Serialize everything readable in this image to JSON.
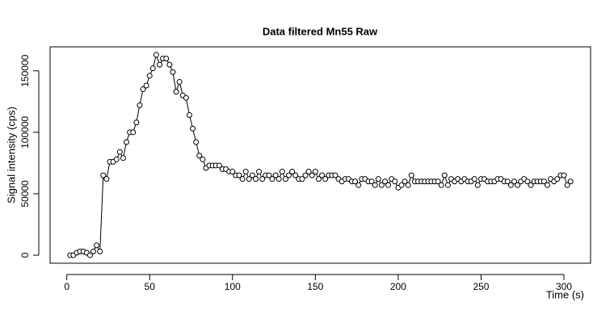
{
  "chart_data": {
    "type": "line",
    "title": "Data filtered Mn55 Raw",
    "x_label": "Time (s)",
    "y_label": "Signal intensity (cps)",
    "x": [
      2,
      4,
      6,
      8,
      10,
      12,
      14,
      16,
      18,
      20,
      22,
      24,
      26,
      28,
      30,
      32,
      34,
      36,
      38,
      40,
      42,
      44,
      46,
      48,
      50,
      52,
      54,
      56,
      58,
      60,
      62,
      64,
      66,
      68,
      70,
      72,
      74,
      76,
      78,
      80,
      82,
      84,
      86,
      88,
      90,
      92,
      94,
      96,
      98,
      100,
      102,
      104,
      106,
      108,
      110,
      112,
      114,
      116,
      118,
      120,
      122,
      124,
      126,
      128,
      130,
      132,
      134,
      136,
      138,
      140,
      142,
      144,
      146,
      148,
      150,
      152,
      154,
      156,
      158,
      160,
      162,
      164,
      166,
      168,
      170,
      172,
      174,
      176,
      178,
      180,
      182,
      184,
      186,
      188,
      190,
      192,
      194,
      196,
      198,
      200,
      202,
      204,
      206,
      208,
      210,
      212,
      214,
      216,
      218,
      220,
      222,
      224,
      226,
      228,
      230,
      232,
      234,
      236,
      238,
      240,
      242,
      244,
      246,
      248,
      250,
      252,
      254,
      256,
      258,
      260,
      262,
      264,
      266,
      268,
      270,
      272,
      274,
      276,
      278,
      280,
      282,
      284,
      286,
      288,
      290,
      292,
      294,
      296,
      298,
      300,
      302,
      304
    ],
    "series": [
      {
        "color": "#000000",
        "values": [
          0,
          0,
          2000,
          3000,
          3000,
          2000,
          0,
          3000,
          8000,
          3000,
          65000,
          62000,
          76000,
          76000,
          78000,
          84000,
          79000,
          92000,
          100000,
          100000,
          108000,
          122000,
          135000,
          138000,
          146000,
          152000,
          163000,
          155000,
          160000,
          160000,
          155000,
          149000,
          133000,
          141000,
          130000,
          128000,
          114000,
          103000,
          92000,
          81000,
          78000,
          71000,
          73000,
          73000,
          73000,
          73000,
          70000,
          70000,
          68000,
          68000,
          65000,
          65000,
          62000,
          68000,
          62000,
          65000,
          62000,
          68000,
          62000,
          65000,
          65000,
          62000,
          65000,
          62000,
          68000,
          62000,
          65000,
          68000,
          65000,
          62000,
          62000,
          65000,
          68000,
          65000,
          68000,
          62000,
          65000,
          62000,
          65000,
          65000,
          65000,
          62000,
          60000,
          62000,
          62000,
          60000,
          60000,
          57000,
          62000,
          62000,
          60000,
          60000,
          57000,
          62000,
          57000,
          60000,
          57000,
          62000,
          60000,
          55000,
          57000,
          60000,
          57000,
          65000,
          60000,
          60000,
          60000,
          60000,
          60000,
          60000,
          60000,
          60000,
          57000,
          65000,
          57000,
          62000,
          60000,
          62000,
          60000,
          62000,
          60000,
          60000,
          62000,
          57000,
          62000,
          62000,
          60000,
          60000,
          60000,
          62000,
          62000,
          60000,
          60000,
          57000,
          60000,
          57000,
          60000,
          62000,
          60000,
          57000,
          60000,
          60000,
          60000,
          60000,
          57000,
          62000,
          60000,
          62000,
          65000,
          65000,
          57000,
          60000
        ]
      }
    ],
    "xlim": [
      -10.08,
      316.08
    ],
    "ylim": [
      -6520,
      169520
    ],
    "xticks": [
      0,
      50,
      100,
      150,
      200,
      250,
      300
    ],
    "yticks": [
      0,
      50000,
      100000,
      150000
    ]
  }
}
